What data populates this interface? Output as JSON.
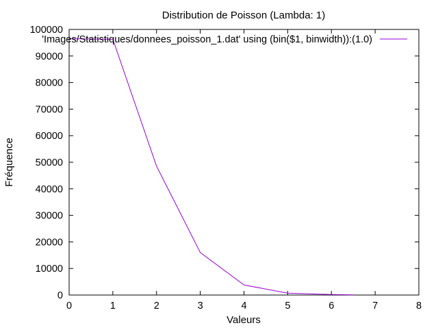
{
  "chart_data": {
    "type": "line",
    "title": "Distribution de Poisson (Lambda: 1)",
    "xlabel": "Valeurs",
    "ylabel": "Fréquence",
    "xlim": [
      0,
      8
    ],
    "ylim": [
      0,
      100000
    ],
    "x_ticks": [
      0,
      1,
      2,
      3,
      4,
      5,
      6,
      7,
      8
    ],
    "y_ticks": [
      0,
      10000,
      20000,
      30000,
      40000,
      50000,
      60000,
      70000,
      80000,
      90000,
      100000
    ],
    "grid": false,
    "legend_position": "top-right",
    "series": [
      {
        "name": "'Images/Statistiques/donnees_poisson_1.dat' using (bin($1, binwidth)):(1.0)",
        "color": "#9400d3",
        "x": [
          0,
          1,
          2,
          3,
          4,
          5,
          6,
          6.5
        ],
        "y": [
          96500,
          96300,
          48500,
          16000,
          3800,
          700,
          200,
          50
        ]
      }
    ]
  }
}
